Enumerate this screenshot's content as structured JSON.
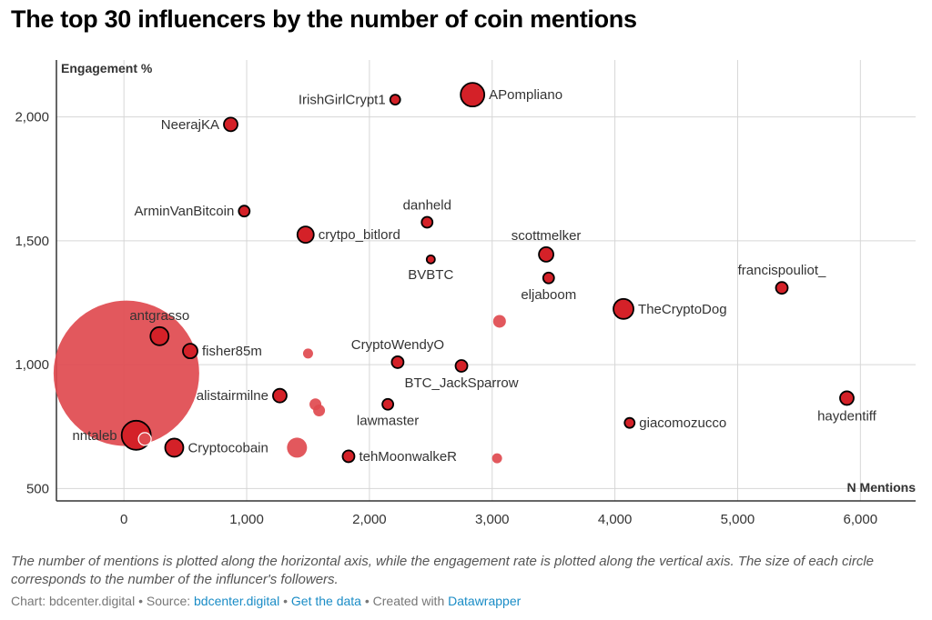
{
  "chart_data": {
    "type": "scatter",
    "title": "The top 30 influencers by the number of coin mentions",
    "xlabel": "N Mentions",
    "ylabel": "Engagement %",
    "xlim": [
      -550,
      6450
    ],
    "ylim": [
      450,
      2230
    ],
    "xticks": [
      0,
      1000,
      2000,
      3000,
      4000,
      5000,
      6000
    ],
    "xtick_labels": [
      "0",
      "1,000",
      "2,000",
      "3,000",
      "4,000",
      "5,000",
      "6,000"
    ],
    "yticks": [
      500,
      1000,
      1500,
      2000
    ],
    "ytick_labels": [
      "500",
      "1,000",
      "1,500",
      "2,000"
    ],
    "grid": true,
    "colors": {
      "dot": "#d42128",
      "faded_dot": "#df4a4f",
      "outline": "#000000"
    },
    "points": [
      {
        "label": "",
        "x": 20,
        "y": 965,
        "r": 80,
        "outlined": false
      },
      {
        "label": "APompliano",
        "x": 2840,
        "y": 2090,
        "r": 13,
        "outlined": true,
        "pos": "right"
      },
      {
        "label": "IrishGirlCrypt1",
        "x": 2210,
        "y": 2070,
        "r": 5.5,
        "outlined": true,
        "pos": "left"
      },
      {
        "label": "NeerajKA",
        "x": 870,
        "y": 1970,
        "r": 7.5,
        "outlined": true,
        "pos": "left"
      },
      {
        "label": "ArminVanBitcoin",
        "x": 980,
        "y": 1620,
        "r": 6,
        "outlined": true,
        "pos": "left"
      },
      {
        "label": "danheld",
        "x": 2470,
        "y": 1575,
        "r": 6,
        "outlined": true,
        "pos": "top"
      },
      {
        "label": "crytpo_bitlord",
        "x": 1480,
        "y": 1525,
        "r": 9,
        "outlined": true,
        "pos": "right"
      },
      {
        "label": "scottmelker",
        "x": 3440,
        "y": 1445,
        "r": 8,
        "outlined": true,
        "pos": "top"
      },
      {
        "label": "BVBTC",
        "x": 2500,
        "y": 1425,
        "r": 4.5,
        "outlined": true,
        "pos": "bottom"
      },
      {
        "label": "eljaboom",
        "x": 3460,
        "y": 1350,
        "r": 6,
        "outlined": true,
        "pos": "bottom"
      },
      {
        "label": "francispouliot_",
        "x": 5360,
        "y": 1310,
        "r": 6.5,
        "outlined": true,
        "pos": "top"
      },
      {
        "label": "TheCryptoDog",
        "x": 4070,
        "y": 1225,
        "r": 11,
        "outlined": true,
        "pos": "right"
      },
      {
        "label": "",
        "x": 3060,
        "y": 1175,
        "r": 7,
        "outlined": false
      },
      {
        "label": "antgrasso",
        "x": 290,
        "y": 1115,
        "r": 10,
        "outlined": true,
        "pos": "top"
      },
      {
        "label": "fisher85m",
        "x": 540,
        "y": 1055,
        "r": 8,
        "outlined": true,
        "pos": "right"
      },
      {
        "label": "",
        "x": 1500,
        "y": 1045,
        "r": 5.5,
        "outlined": false
      },
      {
        "label": "CryptoWendyO",
        "x": 2230,
        "y": 1010,
        "r": 6.5,
        "outlined": true,
        "pos": "top"
      },
      {
        "label": "BTC_JackSparrow",
        "x": 2750,
        "y": 995,
        "r": 6.5,
        "outlined": true,
        "pos": "bottom"
      },
      {
        "label": "alistairmilne",
        "x": 1270,
        "y": 875,
        "r": 7.5,
        "outlined": true,
        "pos": "left"
      },
      {
        "label": "haydentiff",
        "x": 5890,
        "y": 865,
        "r": 7.5,
        "outlined": true,
        "pos": "bottom"
      },
      {
        "label": "",
        "x": 1560,
        "y": 840,
        "r": 6.5,
        "outlined": false
      },
      {
        "label": "lawmaster",
        "x": 2150,
        "y": 840,
        "r": 6,
        "outlined": true,
        "pos": "bottom"
      },
      {
        "label": "",
        "x": 1590,
        "y": 815,
        "r": 6.5,
        "outlined": false
      },
      {
        "label": "giacomozucco",
        "x": 4120,
        "y": 765,
        "r": 5.5,
        "outlined": true,
        "pos": "right"
      },
      {
        "label": "nntaleb",
        "x": 100,
        "y": 715,
        "r": 16,
        "outlined": true,
        "pos": "left"
      },
      {
        "label": "",
        "x": 170,
        "y": 700,
        "r": 7,
        "outlined": false,
        "stroke": "#ffffff"
      },
      {
        "label": "Cryptocobain",
        "x": 410,
        "y": 665,
        "r": 10,
        "outlined": true,
        "pos": "right"
      },
      {
        "label": "",
        "x": 1410,
        "y": 665,
        "r": 11,
        "outlined": false
      },
      {
        "label": "tehMoonwalkeR",
        "x": 1830,
        "y": 630,
        "r": 6.5,
        "outlined": true,
        "pos": "right"
      },
      {
        "label": "",
        "x": 3040,
        "y": 622,
        "r": 5.5,
        "outlined": false
      }
    ]
  },
  "description": "The number of mentions is plotted along the horizontal axis, while the engagement rate is plotted along the vertical axis. The size of each circle corresponds to the number of the influncer's followers.",
  "footer": {
    "prefix": "Chart: bdcenter.digital • Source: ",
    "source_link": "bdcenter.digital",
    "sep1": " • ",
    "data_link": "Get the data",
    "sep2": " • Created with ",
    "tool_link": "Datawrapper"
  }
}
